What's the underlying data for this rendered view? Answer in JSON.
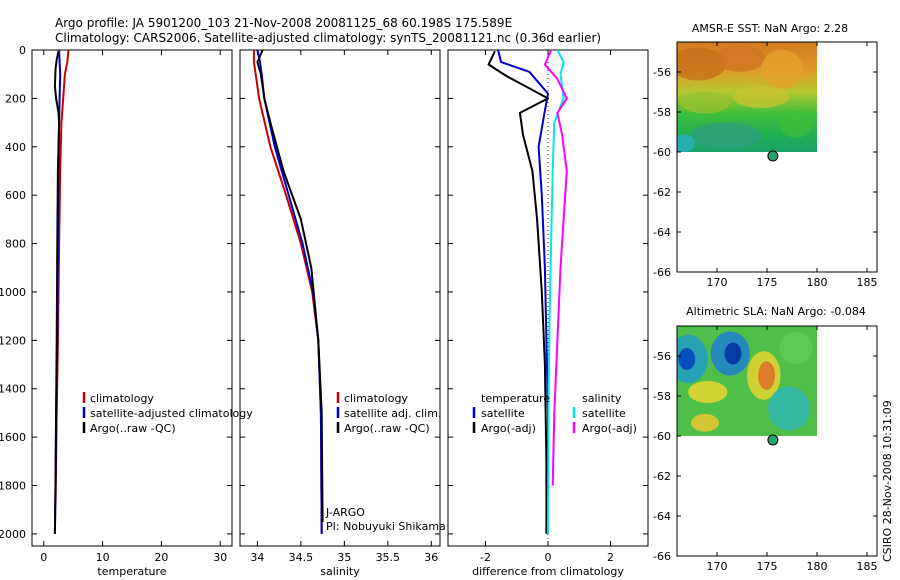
{
  "header": {
    "line1": "Argo profile: JA 5901200_103 21-Nov-2008 20081125_68 60.198S 175.589E",
    "line2": "Climatology: CARS2006. Satellite-adjusted climatology: synTS_20081121.nc (0.36d earlier)"
  },
  "side_label": "CSIRO 28-Nov-2008 10:31:09",
  "colors": {
    "climatology": "#cc0000",
    "satellite": "#0000cc",
    "argo": "#000000",
    "satellite_salinity": "#00e5ee",
    "argo_salinity": "#ff00ff",
    "sst_warm": "#d98a1a",
    "sst_cool": "#2bb53a",
    "sla_low": "#0044cc",
    "sla_high": "#e06d2a"
  },
  "chart_data": [
    {
      "id": "temperature",
      "type": "line",
      "xlabel": "temperature",
      "ylabel": "",
      "xlim": [
        -2,
        32
      ],
      "ylim": [
        2050,
        0
      ],
      "xticks": [
        0,
        10,
        20,
        30
      ],
      "yticks": [
        0,
        200,
        400,
        600,
        800,
        1000,
        1200,
        1400,
        1600,
        1800,
        2000
      ],
      "legend": [
        "climatology",
        "satellite-adjusted climatology",
        "Argo(..raw -QC)"
      ],
      "series": [
        {
          "name": "climatology",
          "color": "climatology",
          "x": [
            4.2,
            4.0,
            3.6,
            3.3,
            3.0,
            2.8,
            2.6,
            2.4,
            2.2,
            2.05,
            2.0
          ],
          "y": [
            0,
            50,
            100,
            200,
            300,
            500,
            800,
            1200,
            1500,
            1800,
            1880
          ]
        },
        {
          "name": "satellite-adjusted climatology",
          "color": "satellite",
          "x": [
            2.6,
            2.7,
            2.8,
            2.7,
            2.6,
            2.5,
            2.4,
            2.3,
            2.1,
            2.0,
            1.9
          ],
          "y": [
            0,
            50,
            100,
            200,
            300,
            500,
            800,
            1200,
            1500,
            1800,
            2000
          ]
        },
        {
          "name": "Argo(..raw -QC)",
          "color": "argo",
          "x": [
            2.5,
            2.2,
            2.0,
            1.9,
            2.1,
            2.5,
            2.6,
            2.4,
            2.3,
            2.2,
            2.1,
            2.0,
            1.9
          ],
          "y": [
            5,
            40,
            80,
            150,
            200,
            260,
            300,
            500,
            800,
            1200,
            1500,
            1800,
            2000
          ]
        }
      ]
    },
    {
      "id": "salinity",
      "type": "line",
      "xlabel": "salinity",
      "ylabel": "",
      "xlim": [
        33.8,
        36.1
      ],
      "ylim": [
        2050,
        0
      ],
      "xticks": [
        34,
        34.5,
        35,
        35.5,
        36
      ],
      "legend": [
        "climatology",
        "satellite adj. clim.",
        "Argo(..raw -QC)"
      ],
      "annotations": [
        "J-ARGO",
        "PI: Nobuyuki Shikama"
      ],
      "series": [
        {
          "name": "climatology",
          "color": "climatology",
          "x": [
            33.96,
            33.96,
            33.98,
            34.02,
            34.15,
            34.33,
            34.5,
            34.63,
            34.7,
            34.73,
            34.74
          ],
          "y": [
            0,
            50,
            100,
            200,
            400,
            600,
            800,
            1000,
            1200,
            1500,
            2000
          ]
        },
        {
          "name": "satellite adj. clim.",
          "color": "satellite",
          "x": [
            34.0,
            34.03,
            34.05,
            34.08,
            34.2,
            34.36,
            34.52,
            34.64,
            34.7,
            34.73,
            34.74
          ],
          "y": [
            0,
            50,
            100,
            200,
            400,
            600,
            800,
            1000,
            1200,
            1500,
            2000
          ]
        },
        {
          "name": "Argo(..raw -QC)",
          "color": "argo",
          "x": [
            34.06,
            34.0,
            34.04,
            34.08,
            34.15,
            34.3,
            34.5,
            34.62,
            34.7,
            34.74,
            34.75
          ],
          "y": [
            0,
            50,
            100,
            200,
            300,
            500,
            700,
            900,
            1200,
            1500,
            1950
          ]
        }
      ]
    },
    {
      "id": "difference",
      "type": "line",
      "xlabel": "difference from climatology",
      "ylabel": "",
      "xlim": [
        -3.2,
        3.2
      ],
      "ylim": [
        2050,
        0
      ],
      "xticks": [
        -2,
        0,
        2
      ],
      "legend_left": [
        "temperature",
        "satellite",
        "Argo(-adj)"
      ],
      "legend_right": [
        "salinity",
        "satellite",
        "Argo(-adj)"
      ],
      "series": [
        {
          "name": "temperature satellite",
          "color": "satellite",
          "x": [
            -1.6,
            -1.5,
            -0.6,
            0.0,
            -0.1,
            -0.3,
            -0.2,
            -0.1,
            -0.05,
            0.0,
            0.0
          ],
          "y": [
            0,
            50,
            90,
            180,
            250,
            400,
            600,
            900,
            1200,
            1500,
            2000
          ]
        },
        {
          "name": "temperature Argo(-adj)",
          "color": "argo",
          "x": [
            -1.7,
            -1.9,
            -1.3,
            0.0,
            -0.9,
            -0.8,
            -0.5,
            -0.35,
            -0.2,
            -0.1,
            -0.05,
            -0.05
          ],
          "y": [
            5,
            60,
            110,
            200,
            260,
            350,
            500,
            700,
            1000,
            1300,
            1700,
            2000
          ]
        },
        {
          "name": "salinity satellite",
          "color": "satellite_salinity",
          "x": [
            0.3,
            0.5,
            0.4,
            0.5,
            0.2,
            0.15,
            0.1,
            0.05,
            0.02,
            0.01,
            0.0
          ],
          "y": [
            0,
            50,
            100,
            200,
            300,
            500,
            800,
            1100,
            1400,
            1700,
            2000
          ]
        },
        {
          "name": "salinity Argo(-adj)",
          "color": "argo_salinity",
          "x": [
            0.1,
            -0.1,
            0.3,
            0.6,
            0.3,
            0.45,
            0.6,
            0.5,
            0.4,
            0.3,
            0.2,
            0.15
          ],
          "y": [
            0,
            60,
            120,
            200,
            260,
            350,
            500,
            700,
            900,
            1200,
            1500,
            1800
          ]
        }
      ]
    },
    {
      "id": "sst_map",
      "type": "heatmap",
      "title": "AMSR-E SST: NaN Argo: 2.28",
      "xlim": [
        166,
        186
      ],
      "ylim": [
        -66,
        -54.5
      ],
      "xticks": [
        170,
        175,
        180,
        185
      ],
      "yticks": [
        -56,
        -58,
        -60,
        -62,
        -64,
        -66
      ],
      "data_extent": {
        "lon": [
          166,
          180
        ],
        "lat": [
          -60,
          -54.5
        ]
      },
      "marker": {
        "lon": 175.589,
        "lat": -60.198
      }
    },
    {
      "id": "sla_map",
      "type": "heatmap",
      "title": "Altimetric SLA: NaN Argo: -0.084",
      "xlim": [
        166,
        186
      ],
      "ylim": [
        -66,
        -54.5
      ],
      "xticks": [
        170,
        175,
        180,
        185
      ],
      "yticks": [
        -56,
        -58,
        -60,
        -62,
        -64,
        -66
      ],
      "data_extent": {
        "lon": [
          166,
          180
        ],
        "lat": [
          -60,
          -54.5
        ]
      },
      "marker": {
        "lon": 175.589,
        "lat": -60.198
      }
    }
  ]
}
